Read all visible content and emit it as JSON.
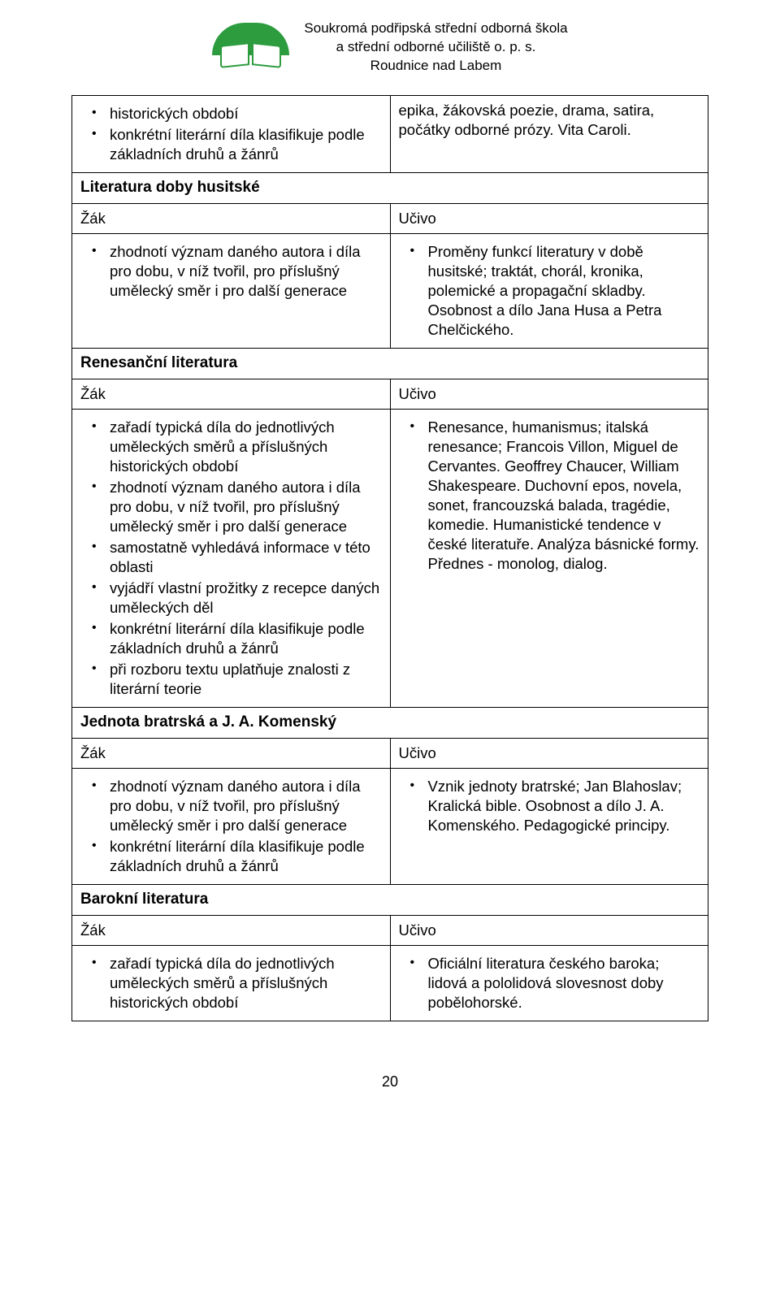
{
  "school": {
    "line1": "Soukromá podřipská střední odborná škola",
    "line2": "a střední odborné učiliště o. p. s.",
    "line3": "Roudnice nad Labem"
  },
  "row0": {
    "left_items": [
      "historických období",
      "konkrétní literární díla klasifikuje podle základních druhů a žánrů"
    ],
    "right_text": "epika, žákovská poezie, drama, satira, počátky odborné prózy. Vita Caroli."
  },
  "sec1": {
    "heading": "Literatura doby husitské",
    "zak": "Žák",
    "ucivo": "Učivo",
    "left_items": [
      "zhodnotí význam daného autora i díla pro dobu, v níž tvořil, pro příslušný umělecký směr i pro další generace"
    ],
    "right_items": [
      "Proměny funkcí literatury v době husitské; traktát, chorál, kronika, polemické a propagační skladby. Osobnost a dílo Jana Husa a Petra Chelčického."
    ]
  },
  "sec2": {
    "heading": "Renesanční literatura",
    "zak": "Žák",
    "ucivo": "Učivo",
    "left_items": [
      "zařadí typická díla do jednotlivých uměleckých směrů a příslušných historických období",
      "zhodnotí význam daného autora i díla pro dobu, v níž tvořil, pro příslušný umělecký směr i pro další generace",
      "samostatně vyhledává informace v této oblasti",
      "vyjádří vlastní prožitky z recepce daných uměleckých děl",
      "konkrétní literární díla klasifikuje podle základních druhů a žánrů",
      "při rozboru textu uplatňuje znalosti z literární teorie"
    ],
    "right_items": [
      "Renesance, humanismus; italská renesance; Francois Villon, Miguel de Cervantes. Geoffrey Chaucer, William Shakespeare. Duchovní epos, novela, sonet, francouzská balada, tragédie, komedie. Humanistické tendence v české literatuře. Analýza básnické formy. Přednes - monolog, dialog."
    ]
  },
  "sec3": {
    "heading": "Jednota bratrská a J. A. Komenský",
    "zak": "Žák",
    "ucivo": "Učivo",
    "left_items": [
      "zhodnotí význam daného autora i díla pro dobu, v níž tvořil, pro příslušný umělecký směr i pro další generace",
      "konkrétní literární díla klasifikuje podle základních druhů a žánrů"
    ],
    "right_items": [
      "Vznik jednoty bratrské; Jan Blahoslav; Kralická bible. Osobnost a dílo J. A. Komenského. Pedagogické principy."
    ]
  },
  "sec4": {
    "heading": "Barokní literatura",
    "zak": "Žák",
    "ucivo": "Učivo",
    "left_items": [
      "zařadí typická díla do jednotlivých uměleckých směrů a příslušných historických období"
    ],
    "right_items": [
      "Oficiální literatura českého baroka; lidová a pololidová slovesnost doby pobělohorské."
    ]
  },
  "page_number": "20"
}
